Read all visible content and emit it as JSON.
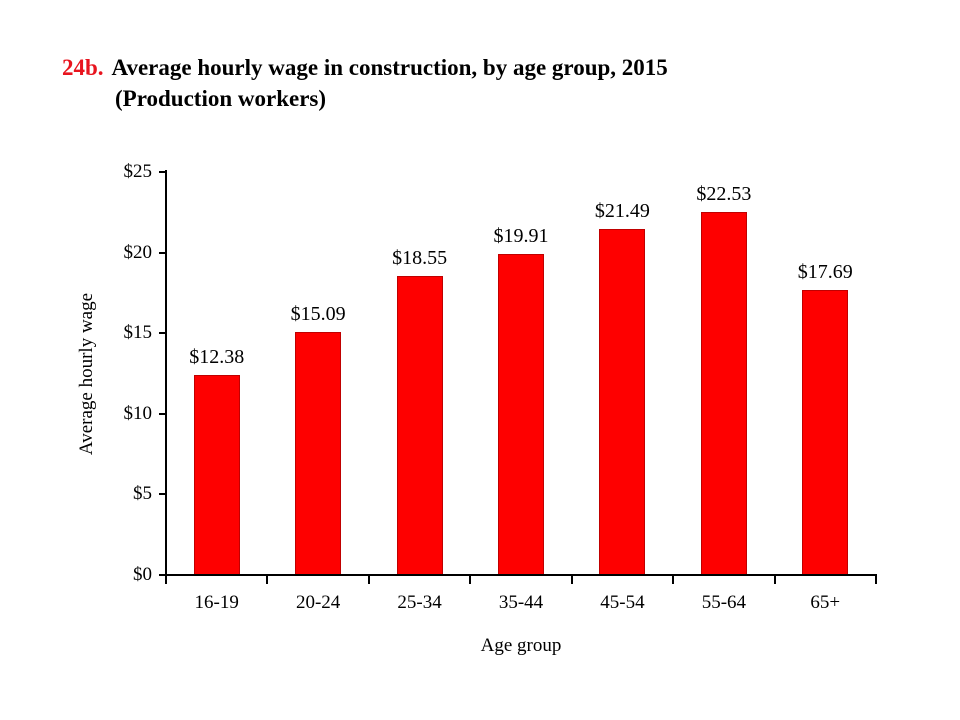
{
  "title": {
    "number": "24b.",
    "line1": "Average hourly wage in construction, by age group, 2015",
    "line2": "(Production workers)"
  },
  "chart_data": {
    "type": "bar",
    "title": "24b. Average hourly wage in construction, by age group, 2015 (Production workers)",
    "categories": [
      "16-19",
      "20-24",
      "25-34",
      "35-44",
      "45-54",
      "55-64",
      "65+"
    ],
    "values": [
      12.38,
      15.09,
      18.55,
      19.91,
      21.49,
      22.53,
      17.69
    ],
    "data_labels": [
      "$12.38",
      "$15.09",
      "$18.55",
      "$19.91",
      "$21.49",
      "$22.53",
      "$17.69"
    ],
    "xlabel": "Age group",
    "ylabel": "Average hourly wage",
    "ylim": [
      0,
      25
    ],
    "ytick_interval": 5,
    "ytick_labels": [
      "$0",
      "$5",
      "$10",
      "$15",
      "$20",
      "$25"
    ],
    "grid": false,
    "legend": "none",
    "bar_color": "#fe0000",
    "bar_border_color": "#c00000",
    "title_number_color": "#e8141e"
  }
}
